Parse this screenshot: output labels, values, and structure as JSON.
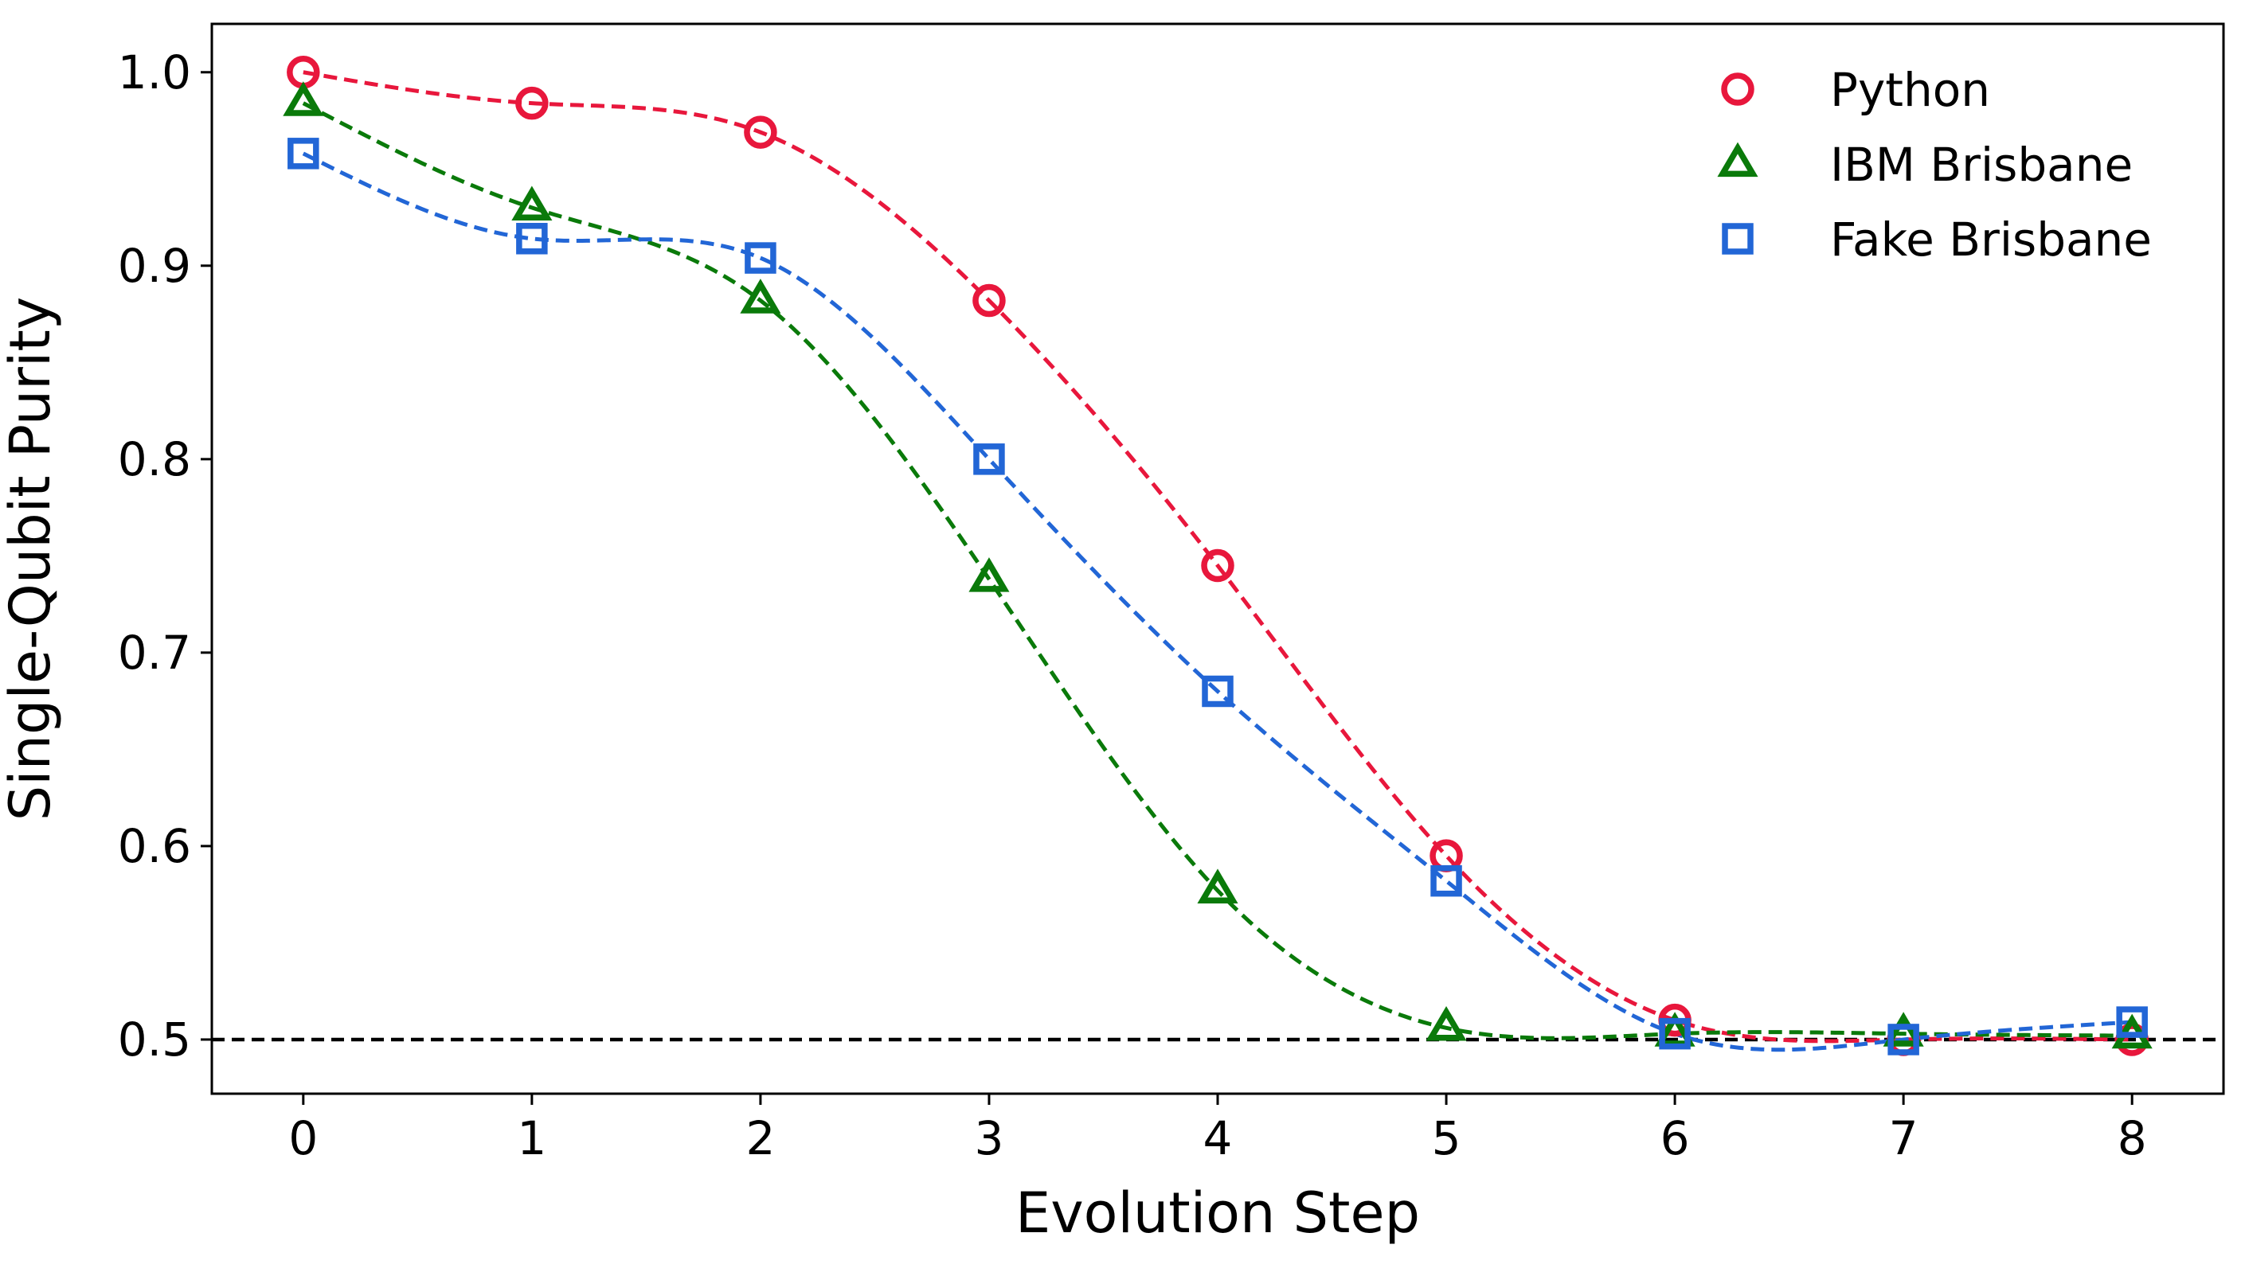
{
  "chart_data": {
    "type": "line",
    "title": "",
    "xlabel": "Evolution Step",
    "ylabel": "Single-Qubit Purity",
    "xlim": [
      -0.4,
      8.4
    ],
    "ylim": [
      0.472,
      1.025
    ],
    "xticks": [
      0,
      1,
      2,
      3,
      4,
      5,
      6,
      7,
      8
    ],
    "xtick_labels": [
      "0",
      "1",
      "2",
      "3",
      "4",
      "5",
      "6",
      "7",
      "8"
    ],
    "yticks": [
      0.5,
      0.6,
      0.7,
      0.8,
      0.9,
      1.0
    ],
    "ytick_labels": [
      "0.5",
      "0.6",
      "0.7",
      "0.8",
      "0.9",
      "1.0"
    ],
    "grid": false,
    "legend_position": "top-right",
    "reference_line": {
      "y": 0.5,
      "style": "dashed",
      "color": "#000000"
    },
    "x": [
      0,
      1,
      2,
      3,
      4,
      5,
      6,
      7,
      8
    ],
    "series": [
      {
        "name": "Python",
        "marker": "circle",
        "color": "#e8173c",
        "values": [
          1.0,
          0.984,
          0.969,
          0.882,
          0.745,
          0.595,
          0.51,
          0.5,
          0.5
        ]
      },
      {
        "name": "IBM Brisbane",
        "marker": "triangle",
        "color": "#0a7a0a",
        "values": [
          0.984,
          0.93,
          0.882,
          0.738,
          0.577,
          0.506,
          0.503,
          0.503,
          0.502
        ]
      },
      {
        "name": "Fake Brisbane",
        "marker": "square",
        "color": "#2266d6",
        "values": [
          0.958,
          0.914,
          0.904,
          0.8,
          0.68,
          0.582,
          0.503,
          0.5,
          0.509
        ]
      }
    ]
  }
}
